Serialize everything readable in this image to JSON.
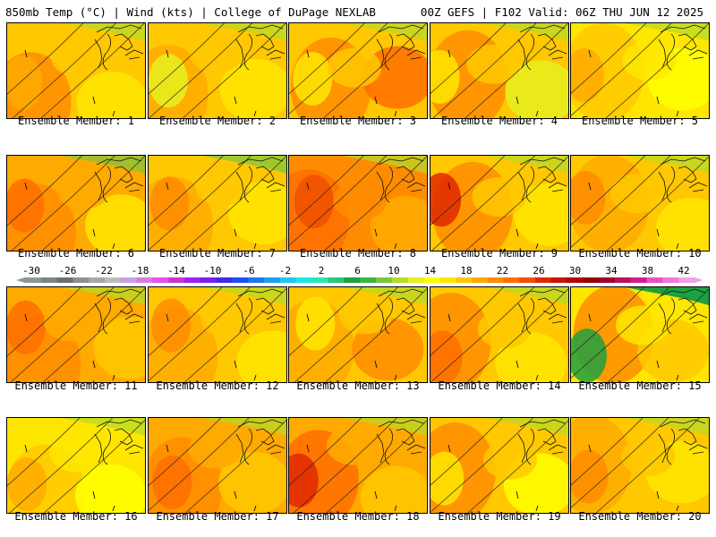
{
  "header": {
    "left": "850mb Temp (°C) | Wind (kts) | College of DuPage NEXLAB",
    "right": "00Z GEFS | F102 Valid: 06Z THU JUN 12 2025"
  },
  "colorbar": {
    "labels": [
      "-30",
      "-26",
      "-22",
      "-18",
      "-14",
      "-10",
      "-6",
      "-2",
      "2",
      "6",
      "10",
      "14",
      "18",
      "22",
      "26",
      "30",
      "34",
      "38",
      "42"
    ],
    "colors": [
      "#8a9a93",
      "#7b8680",
      "#6c716d",
      "#8f8f8f",
      "#a7a7a7",
      "#bcbcbc",
      "#c8a0e6",
      "#d87ae0",
      "#e650e6",
      "#cc33cc",
      "#a020f0",
      "#7a1ef0",
      "#3c2ce6",
      "#1e50f0",
      "#1e78f0",
      "#1ea0f0",
      "#1ec8f0",
      "#1ee6e6",
      "#28e6b4",
      "#28c878",
      "#1ea040",
      "#3cb43c",
      "#78c83c",
      "#b4dc28",
      "#e6f01e",
      "#ffff00",
      "#ffe600",
      "#ffc800",
      "#ffaa00",
      "#ff8c00",
      "#ff6e00",
      "#f05000",
      "#e02800",
      "#c81400",
      "#b40000",
      "#960000",
      "#a0002a",
      "#b4145a",
      "#d01e96",
      "#e650c8",
      "#f078dc",
      "#f0a0e6"
    ]
  },
  "panels": [
    {
      "caption": "Ensemble Member: 1",
      "palette": [
        "#ffc800",
        "#ff8c00",
        "#ffaa00",
        "#ffe600"
      ]
    },
    {
      "caption": "Ensemble Member: 2",
      "palette": [
        "#ffc800",
        "#ffaa00",
        "#e6f01e",
        "#ffe600"
      ]
    },
    {
      "caption": "Ensemble Member: 3",
      "palette": [
        "#ffc800",
        "#ff8c00",
        "#ffe600",
        "#ff6e00"
      ]
    },
    {
      "caption": "Ensemble Member: 4",
      "palette": [
        "#ffc800",
        "#ff8c00",
        "#ffe600",
        "#e6f01e"
      ]
    },
    {
      "caption": "Ensemble Member: 5",
      "palette": [
        "#ffe600",
        "#ffc800",
        "#ffaa00",
        "#ffff00"
      ]
    },
    {
      "caption": "Ensemble Member: 6",
      "palette": [
        "#ffaa00",
        "#ff8c00",
        "#ff6e00",
        "#ffe600"
      ]
    },
    {
      "caption": "Ensemble Member: 7",
      "palette": [
        "#ffc800",
        "#ffaa00",
        "#ff8c00",
        "#ffe600"
      ]
    },
    {
      "caption": "Ensemble Member: 8",
      "palette": [
        "#ff8c00",
        "#ff6e00",
        "#f05000",
        "#ffaa00"
      ]
    },
    {
      "caption": "Ensemble Member: 9",
      "palette": [
        "#ffc800",
        "#ff8c00",
        "#e02800",
        "#ffe600"
      ]
    },
    {
      "caption": "Ensemble Member: 10",
      "palette": [
        "#ffc800",
        "#ffaa00",
        "#ff8c00",
        "#ffe600"
      ]
    },
    {
      "caption": "Ensemble Member: 11",
      "palette": [
        "#ffaa00",
        "#ff8c00",
        "#ff6e00",
        "#ffc800"
      ]
    },
    {
      "caption": "Ensemble Member: 12",
      "palette": [
        "#ffc800",
        "#ffaa00",
        "#ff8c00",
        "#ffe600"
      ]
    },
    {
      "caption": "Ensemble Member: 13",
      "palette": [
        "#ffc800",
        "#ffaa00",
        "#ffe600",
        "#ff8c00"
      ]
    },
    {
      "caption": "Ensemble Member: 14",
      "palette": [
        "#ffc800",
        "#ff8c00",
        "#ff6e00",
        "#ffe600"
      ]
    },
    {
      "caption": "Ensemble Member: 15",
      "palette": [
        "#ffe600",
        "#ff8c00",
        "#1ea040",
        "#ffc800"
      ]
    },
    {
      "caption": "Ensemble Member: 16",
      "palette": [
        "#ffe600",
        "#ffc800",
        "#ffaa00",
        "#ffff00"
      ]
    },
    {
      "caption": "Ensemble Member: 17",
      "palette": [
        "#ffaa00",
        "#ff8c00",
        "#ff6e00",
        "#ffc800"
      ]
    },
    {
      "caption": "Ensemble Member: 18",
      "palette": [
        "#ffaa00",
        "#ff6e00",
        "#e02800",
        "#ffc800"
      ]
    },
    {
      "caption": "Ensemble Member: 19",
      "palette": [
        "#ffc800",
        "#ff8c00",
        "#ffe600",
        "#ffff00"
      ]
    },
    {
      "caption": "Ensemble Member: 20",
      "palette": [
        "#ffc800",
        "#ffaa00",
        "#ff8c00",
        "#ffe600"
      ]
    }
  ]
}
